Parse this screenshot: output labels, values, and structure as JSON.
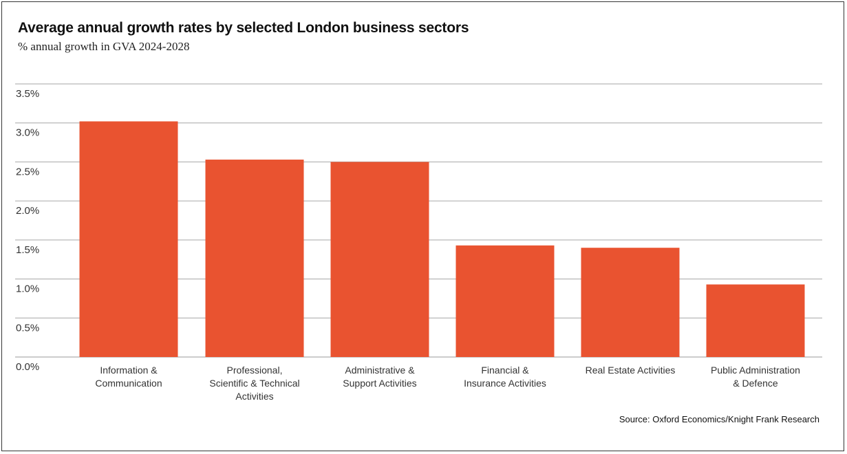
{
  "chart_data": {
    "type": "bar",
    "title": "Average annual growth rates by selected London business sectors",
    "subtitle": "% annual growth in GVA 2024-2028",
    "categories": [
      [
        "Information &",
        "Communication"
      ],
      [
        "Professional,",
        "Scientific & Technical",
        "Activities"
      ],
      [
        "Administrative &",
        "Support Activities"
      ],
      [
        "Financial &",
        "Insurance Activities"
      ],
      [
        "Real Estate Activities"
      ],
      [
        "Public Administration",
        "& Defence"
      ]
    ],
    "values": [
      3.02,
      2.53,
      2.5,
      1.43,
      1.4,
      0.93
    ],
    "ylim": [
      0,
      3.5
    ],
    "yticks": [
      0.0,
      0.5,
      1.0,
      1.5,
      2.0,
      2.5,
      3.0,
      3.5
    ],
    "ytick_labels": [
      "0.0%",
      "0.5%",
      "1.0%",
      "1.5%",
      "2.0%",
      "2.5%",
      "3.0%",
      "3.5%"
    ],
    "bar_color": "#e95330",
    "grid": true,
    "source": "Source: Oxford Economics/Knight Frank Research"
  }
}
